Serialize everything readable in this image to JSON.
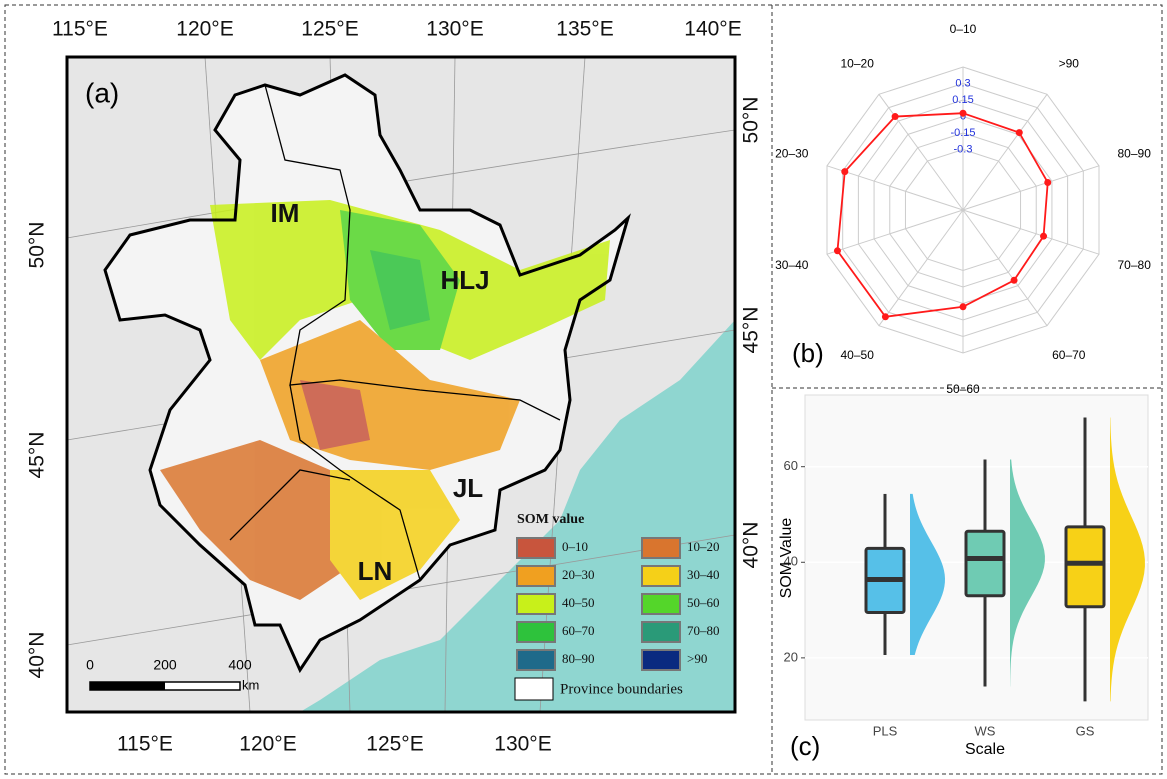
{
  "map": {
    "panel_label": "(a)",
    "top_lon_labels": [
      "115°E",
      "120°E",
      "125°E",
      "130°E",
      "135°E",
      "140°E"
    ],
    "bottom_lon_labels": [
      "115°E",
      "120°E",
      "125°E",
      "130°E"
    ],
    "left_lat_labels": [
      "50°N",
      "45°N",
      "40°N"
    ],
    "right_lat_labels": [
      "50°N",
      "45°N",
      "40°N"
    ],
    "province_labels": [
      "IM",
      "HLJ",
      "JL",
      "LN"
    ],
    "scale_bar": {
      "ticks": [
        0,
        200,
        400
      ],
      "unit": "km"
    },
    "legend": {
      "title": "SOM value",
      "items": [
        {
          "label": "0–10",
          "color": "#c8553d"
        },
        {
          "label": "10–20",
          "color": "#d9752e"
        },
        {
          "label": "20–30",
          "color": "#f0a020"
        },
        {
          "label": "30–40",
          "color": "#f5d018"
        },
        {
          "label": "40–50",
          "color": "#c8f01a"
        },
        {
          "label": "50–60",
          "color": "#54d62a"
        },
        {
          "label": "60–70",
          "color": "#2ec23c"
        },
        {
          "label": "70–80",
          "color": "#2a9a78"
        },
        {
          "label": "80–90",
          "color": "#1f6a8a"
        },
        {
          "label": ">90",
          "color": "#0a2a80"
        }
      ],
      "boundary_label": "Province boundaries"
    }
  },
  "chart_data": [
    {
      "type": "radar",
      "panel_label": "(b)",
      "categories": [
        "0–10",
        ">90",
        "80–90",
        "70–80",
        "60–70",
        "50–60",
        "40–50",
        "30–40",
        "20–30",
        "10–20"
      ],
      "values": [
        0.03,
        0.02,
        -0.04,
        -0.08,
        -0.06,
        0.03,
        0.35,
        0.35,
        0.28,
        0.2
      ],
      "color": "#ff1a1a",
      "rlim": [
        -0.85,
        0.45
      ],
      "rticks": [
        -0.3,
        -0.15,
        0,
        0.15,
        0.3
      ]
    },
    {
      "type": "box",
      "panel_label": "(c)",
      "xlabel": "Scale",
      "ylabel": "SOM Value",
      "categories": [
        "PLS",
        "WS",
        "GS"
      ],
      "colors": [
        "#56c0e8",
        "#6fcbb3",
        "#f7d117"
      ],
      "min": [
        20.6,
        14,
        10.9
      ],
      "q1": [
        29.5,
        33,
        30.7
      ],
      "median": [
        36.4,
        40.8,
        39.8
      ],
      "q3": [
        42.9,
        46.5,
        47.4
      ],
      "max": [
        54.3,
        61.5,
        70.3
      ],
      "ylim": [
        7,
        75
      ],
      "yticks": [
        20,
        40,
        60
      ],
      "grid": true
    }
  ]
}
